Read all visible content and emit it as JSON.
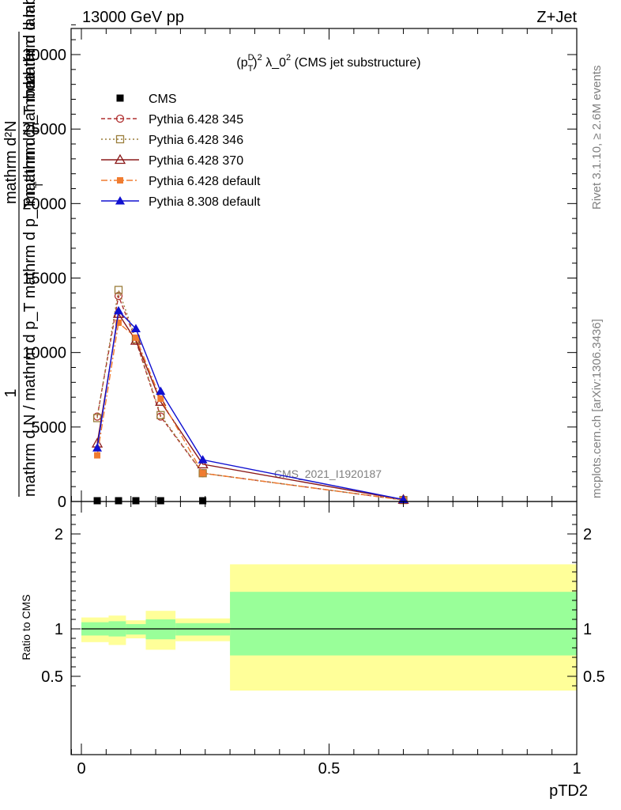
{
  "header": {
    "left": "13000 GeV pp",
    "right": "Z+Jet"
  },
  "side_labels": {
    "rivet": "Rivet 3.1.10, ≥ 2.6M events",
    "mcplots": "mcplots.cern.ch [arXiv:1306.3436]"
  },
  "watermark": "CMS_2021_I1920187",
  "chart_data": [
    {
      "type": "line",
      "title": "(p_T^D)^2 λ_0^2 (CMS jet substructure)",
      "title_parts": {
        "open": "(p",
        "sup1": "D",
        "sub1": "T",
        "close": ")",
        "sup2": "2",
        "mid": " λ_0",
        "sup3": "2",
        "tail": " (CMS jet substructure)"
      },
      "ylabel_lines": {
        "one": "1",
        "denominator": "mathrm d N / mathrm d p_T mathrm d p_T mathrm d lambda",
        "numerator_outer": "mathrm d²N",
        "numerator_inner": "mathrm d p_T mathrm d lambda",
        "numerator_top": "mathrm d lambda",
        "sub": "T"
      },
      "xlabel": "pTD2",
      "xlim": [
        0,
        1
      ],
      "ylim": [
        0,
        32000
      ],
      "yticks": [
        0,
        5000,
        10000,
        15000,
        20000,
        25000,
        30000
      ],
      "ytick_labels": [
        "0",
        "5000",
        "10000",
        "15000",
        "20000",
        "25000",
        "30000"
      ],
      "grid": false,
      "legend_position": "top-left",
      "series": [
        {
          "name": "CMS",
          "color": "#000000",
          "marker": "filled-square",
          "line": "none",
          "x": [
            0.032,
            0.075,
            0.11,
            0.16,
            0.245
          ],
          "y": [
            0,
            0,
            0,
            0,
            0
          ]
        },
        {
          "name": "Pythia 6.428 345",
          "color": "#b03030",
          "marker": "open-circle",
          "line": "dashed",
          "x": [
            0.032,
            0.075,
            0.11,
            0.16,
            0.245,
            0.65
          ],
          "y": [
            5700,
            13800,
            10800,
            5700,
            1900,
            100
          ]
        },
        {
          "name": "Pythia 6.428 346",
          "color": "#9a7d3a",
          "marker": "open-square",
          "line": "dotted",
          "x": [
            0.032,
            0.075,
            0.11,
            0.16,
            0.245,
            0.65
          ],
          "y": [
            5600,
            14200,
            10900,
            5800,
            1900,
            100
          ]
        },
        {
          "name": "Pythia 6.428 370",
          "color": "#8b1a1a",
          "marker": "open-triangle",
          "line": "solid",
          "x": [
            0.032,
            0.075,
            0.11,
            0.16,
            0.245,
            0.65
          ],
          "y": [
            3900,
            12600,
            10800,
            6700,
            2500,
            120
          ]
        },
        {
          "name": "Pythia 6.428 default",
          "color": "#f07c30",
          "marker": "filled-square-small",
          "line": "dashdot",
          "x": [
            0.032,
            0.075,
            0.11,
            0.16,
            0.245,
            0.65
          ],
          "y": [
            3100,
            12000,
            11000,
            6900,
            1900,
            100
          ]
        },
        {
          "name": "Pythia 8.308 default",
          "color": "#1010d0",
          "marker": "filled-triangle",
          "line": "solid",
          "x": [
            0.032,
            0.075,
            0.11,
            0.16,
            0.245,
            0.65
          ],
          "y": [
            3600,
            12800,
            11600,
            7400,
            2800,
            130
          ]
        }
      ]
    },
    {
      "type": "area",
      "ylabel": "Ratio to CMS",
      "xlabel": "pTD2",
      "xlim": [
        0,
        1
      ],
      "ylim": [
        0.35,
        2.25
      ],
      "yticks": [
        0.5,
        1,
        2
      ],
      "ytick_labels": [
        "0.5",
        "1",
        "2"
      ],
      "xticks": [
        0,
        0.5,
        1
      ],
      "xtick_labels": [
        "0",
        "0.5",
        "1"
      ],
      "reference_line": 1,
      "colors": {
        "inner_band": "#99ff99",
        "outer_band": "#ffff99"
      },
      "bins": [
        {
          "x_low": 0.0,
          "x_high": 0.055,
          "inner": [
            0.93,
            1.07
          ],
          "outer": [
            0.86,
            1.12
          ]
        },
        {
          "x_low": 0.055,
          "x_high": 0.09,
          "inner": [
            0.92,
            1.08
          ],
          "outer": [
            0.83,
            1.14
          ]
        },
        {
          "x_low": 0.09,
          "x_high": 0.13,
          "inner": [
            0.94,
            1.05
          ],
          "outer": [
            0.9,
            1.09
          ]
        },
        {
          "x_low": 0.13,
          "x_high": 0.19,
          "inner": [
            0.89,
            1.1
          ],
          "outer": [
            0.78,
            1.19
          ]
        },
        {
          "x_low": 0.19,
          "x_high": 0.3,
          "inner": [
            0.93,
            1.06
          ],
          "outer": [
            0.87,
            1.11
          ]
        },
        {
          "x_low": 0.3,
          "x_high": 1.0,
          "inner": [
            0.72,
            1.39
          ],
          "outer": [
            0.35,
            1.68
          ]
        }
      ]
    }
  ]
}
